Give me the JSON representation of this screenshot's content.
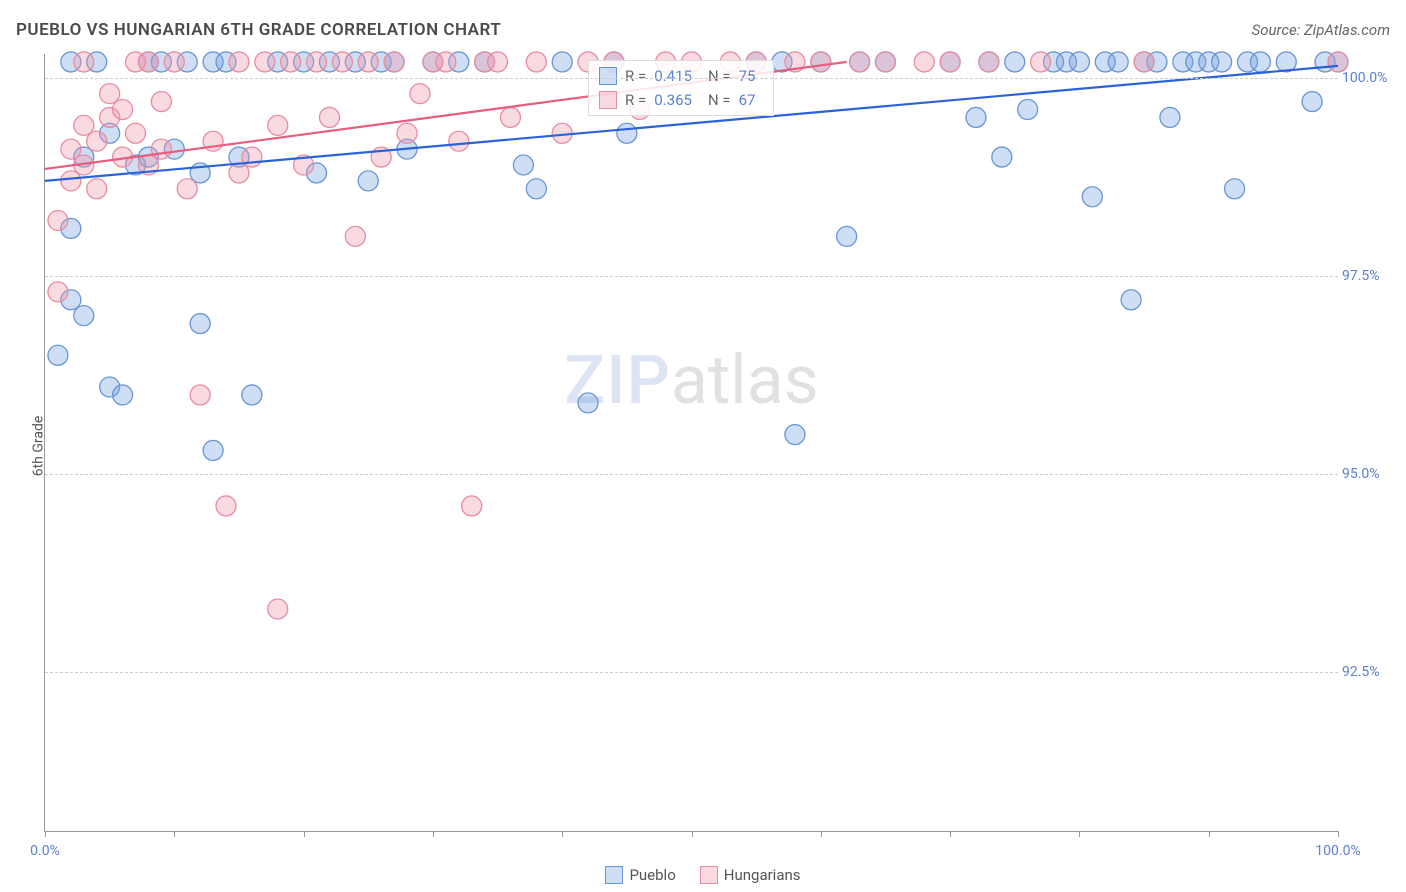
{
  "header": {
    "title": "PUEBLO VS HUNGARIAN 6TH GRADE CORRELATION CHART",
    "source": "Source: ZipAtlas.com"
  },
  "chart": {
    "type": "scatter",
    "ylabel": "6th Grade",
    "ylabel_fontsize": 14,
    "ylabel_color": "#555555",
    "xlim": [
      0,
      100
    ],
    "ylim": [
      90.5,
      100.3
    ],
    "y_ticks": [
      92.5,
      95.0,
      97.5,
      100.0
    ],
    "y_tick_labels": [
      "92.5%",
      "95.0%",
      "97.5%",
      "100.0%"
    ],
    "y_tick_color": "#5b7fd1",
    "x_ticks": [
      0,
      10,
      20,
      30,
      40,
      50,
      60,
      70,
      80,
      90,
      100
    ],
    "x_tick_labels_shown": {
      "0": "0.0%",
      "100": "100.0%"
    },
    "x_tick_color": "#5b7fd1",
    "gridline_color": "#cccccc",
    "axis_color": "#999999",
    "background_color": "#ffffff",
    "marker_radius": 10,
    "marker_stroke_width": 1.3,
    "line_width": 2.2,
    "watermark": {
      "text_a": "ZIP",
      "text_b": "atlas",
      "color_a": "rgba(120,150,210,0.25)",
      "color_b": "rgba(120,120,120,0.22)",
      "fontsize": 68
    },
    "series": [
      {
        "name": "Pueblo",
        "color_fill": "rgba(116,160,224,0.35)",
        "color_stroke": "#6a96d6",
        "trend_color": "#2b62d9",
        "R": "0.415",
        "N": "75",
        "trendline": {
          "x1": 0,
          "y1": 98.7,
          "x2": 100,
          "y2": 100.15
        },
        "points": [
          [
            1,
            96.5
          ],
          [
            2,
            98.1
          ],
          [
            2,
            97.2
          ],
          [
            2,
            100.2
          ],
          [
            3,
            99.0
          ],
          [
            3,
            97.0
          ],
          [
            4,
            100.2
          ],
          [
            5,
            99.3
          ],
          [
            5,
            96.1
          ],
          [
            6,
            96.0
          ],
          [
            7,
            98.9
          ],
          [
            8,
            100.2
          ],
          [
            8,
            99.0
          ],
          [
            9,
            100.2
          ],
          [
            10,
            99.1
          ],
          [
            11,
            100.2
          ],
          [
            12,
            98.8
          ],
          [
            12,
            96.9
          ],
          [
            13,
            100.2
          ],
          [
            13,
            95.3
          ],
          [
            14,
            100.2
          ],
          [
            15,
            99.0
          ],
          [
            16,
            96.0
          ],
          [
            18,
            100.2
          ],
          [
            20,
            100.2
          ],
          [
            21,
            98.8
          ],
          [
            22,
            100.2
          ],
          [
            24,
            100.2
          ],
          [
            25,
            98.7
          ],
          [
            26,
            100.2
          ],
          [
            27,
            100.2
          ],
          [
            28,
            99.1
          ],
          [
            30,
            100.2
          ],
          [
            32,
            100.2
          ],
          [
            34,
            100.2
          ],
          [
            37,
            98.9
          ],
          [
            38,
            98.6
          ],
          [
            40,
            100.2
          ],
          [
            42,
            95.9
          ],
          [
            44,
            100.2
          ],
          [
            45,
            99.3
          ],
          [
            55,
            100.2
          ],
          [
            57,
            100.2
          ],
          [
            58,
            95.5
          ],
          [
            60,
            100.2
          ],
          [
            62,
            98.0
          ],
          [
            63,
            100.2
          ],
          [
            65,
            100.2
          ],
          [
            70,
            100.2
          ],
          [
            72,
            99.5
          ],
          [
            73,
            100.2
          ],
          [
            74,
            99.0
          ],
          [
            75,
            100.2
          ],
          [
            76,
            99.6
          ],
          [
            78,
            100.2
          ],
          [
            79,
            100.2
          ],
          [
            80,
            100.2
          ],
          [
            81,
            98.5
          ],
          [
            82,
            100.2
          ],
          [
            83,
            100.2
          ],
          [
            84,
            97.2
          ],
          [
            85,
            100.2
          ],
          [
            86,
            100.2
          ],
          [
            87,
            99.5
          ],
          [
            88,
            100.2
          ],
          [
            89,
            100.2
          ],
          [
            90,
            100.2
          ],
          [
            91,
            100.2
          ],
          [
            92,
            98.6
          ],
          [
            93,
            100.2
          ],
          [
            94,
            100.2
          ],
          [
            96,
            100.2
          ],
          [
            98,
            99.7
          ],
          [
            99,
            100.2
          ],
          [
            100,
            100.2
          ]
        ]
      },
      {
        "name": "Hungarians",
        "color_fill": "rgba(240,150,170,0.35)",
        "color_stroke": "#e88ca2",
        "trend_color": "#e65d7e",
        "R": "0.365",
        "N": "67",
        "trendline": {
          "x1": 0,
          "y1": 98.85,
          "x2": 62,
          "y2": 100.2
        },
        "points": [
          [
            1,
            98.2
          ],
          [
            1,
            97.3
          ],
          [
            2,
            98.7
          ],
          [
            2,
            99.1
          ],
          [
            3,
            98.9
          ],
          [
            3,
            99.4
          ],
          [
            3,
            100.2
          ],
          [
            4,
            99.2
          ],
          [
            4,
            98.6
          ],
          [
            5,
            99.5
          ],
          [
            5,
            99.8
          ],
          [
            6,
            99.0
          ],
          [
            6,
            99.6
          ],
          [
            7,
            100.2
          ],
          [
            7,
            99.3
          ],
          [
            8,
            98.9
          ],
          [
            8,
            100.2
          ],
          [
            9,
            99.1
          ],
          [
            9,
            99.7
          ],
          [
            10,
            100.2
          ],
          [
            11,
            98.6
          ],
          [
            12,
            96.0
          ],
          [
            13,
            99.2
          ],
          [
            14,
            94.6
          ],
          [
            15,
            100.2
          ],
          [
            15,
            98.8
          ],
          [
            16,
            99.0
          ],
          [
            17,
            100.2
          ],
          [
            18,
            93.3
          ],
          [
            18,
            99.4
          ],
          [
            19,
            100.2
          ],
          [
            20,
            98.9
          ],
          [
            21,
            100.2
          ],
          [
            22,
            99.5
          ],
          [
            23,
            100.2
          ],
          [
            24,
            98.0
          ],
          [
            25,
            100.2
          ],
          [
            26,
            99.0
          ],
          [
            27,
            100.2
          ],
          [
            28,
            99.3
          ],
          [
            29,
            99.8
          ],
          [
            30,
            100.2
          ],
          [
            31,
            100.2
          ],
          [
            32,
            99.2
          ],
          [
            33,
            94.6
          ],
          [
            34,
            100.2
          ],
          [
            35,
            100.2
          ],
          [
            36,
            99.5
          ],
          [
            38,
            100.2
          ],
          [
            40,
            99.3
          ],
          [
            42,
            100.2
          ],
          [
            44,
            100.2
          ],
          [
            46,
            99.6
          ],
          [
            48,
            100.2
          ],
          [
            50,
            100.2
          ],
          [
            53,
            100.2
          ],
          [
            55,
            100.2
          ],
          [
            58,
            100.2
          ],
          [
            60,
            100.2
          ],
          [
            63,
            100.2
          ],
          [
            65,
            100.2
          ],
          [
            68,
            100.2
          ],
          [
            70,
            100.2
          ],
          [
            73,
            100.2
          ],
          [
            77,
            100.2
          ],
          [
            85,
            100.2
          ],
          [
            100,
            100.2
          ]
        ]
      }
    ]
  },
  "legend_correlation": {
    "r_label": "R =",
    "n_label": "N ="
  },
  "legend_bottom": {
    "items": [
      "Pueblo",
      "Hungarians"
    ]
  }
}
